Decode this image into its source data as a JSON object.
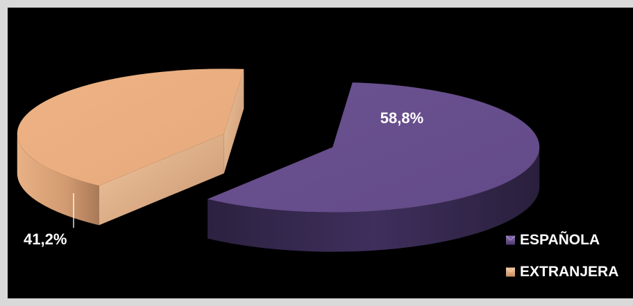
{
  "chart_data": {
    "type": "pie",
    "title": "",
    "style": "3d-exploded",
    "categories": [
      "ESPAÑOLA",
      "EXTRANJERA"
    ],
    "values": [
      58.8,
      41.2
    ],
    "value_labels": [
      "58,8%",
      "41,2%"
    ],
    "colors": [
      "#6b5290",
      "#e9ad80"
    ],
    "legend": {
      "placement": "right",
      "entries": [
        "ESPAÑOLA",
        "EXTRANJERA"
      ]
    }
  }
}
